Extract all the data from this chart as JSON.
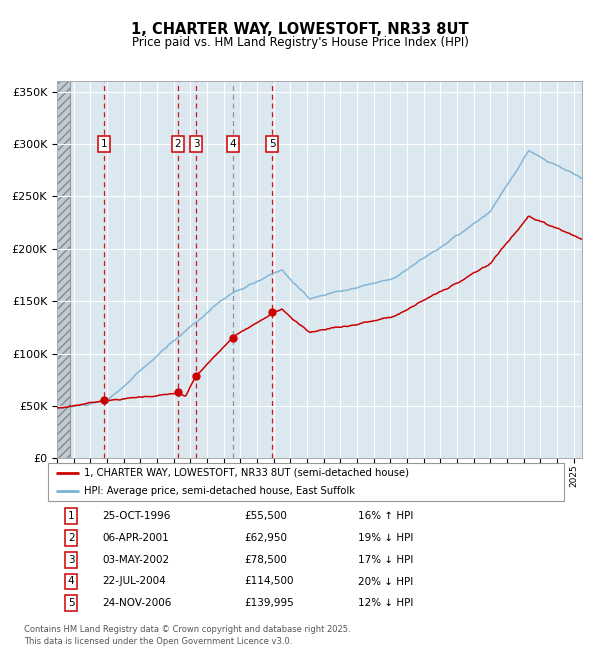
{
  "title_line1": "1, CHARTER WAY, LOWESTOFT, NR33 8UT",
  "title_line2": "Price paid vs. HM Land Registry's House Price Index (HPI)",
  "ylim": [
    0,
    360000
  ],
  "xlim_start": 1994.0,
  "xlim_end": 2025.5,
  "yticks": [
    0,
    50000,
    100000,
    150000,
    200000,
    250000,
    300000,
    350000
  ],
  "ytick_labels": [
    "£0",
    "£50K",
    "£100K",
    "£150K",
    "£200K",
    "£250K",
    "£300K",
    "£350K"
  ],
  "sale_dates_year": [
    1996.81,
    2001.26,
    2002.34,
    2004.55,
    2006.9
  ],
  "sale_prices": [
    55500,
    62950,
    78500,
    114500,
    139995
  ],
  "sale_labels": [
    "1",
    "2",
    "3",
    "4",
    "5"
  ],
  "vline_colors": [
    "#cc0000",
    "#cc0000",
    "#cc0000",
    "#888888",
    "#cc0000"
  ],
  "legend_red": "1, CHARTER WAY, LOWESTOFT, NR33 8UT (semi-detached house)",
  "legend_blue": "HPI: Average price, semi-detached house, East Suffolk",
  "table_rows": [
    [
      "1",
      "25-OCT-1996",
      "£55,500",
      "16% ↑ HPI"
    ],
    [
      "2",
      "06-APR-2001",
      "£62,950",
      "19% ↓ HPI"
    ],
    [
      "3",
      "03-MAY-2002",
      "£78,500",
      "17% ↓ HPI"
    ],
    [
      "4",
      "22-JUL-2004",
      "£114,500",
      "20% ↓ HPI"
    ],
    [
      "5",
      "24-NOV-2006",
      "£139,995",
      "12% ↓ HPI"
    ]
  ],
  "footer": "Contains HM Land Registry data © Crown copyright and database right 2025.\nThis data is licensed under the Open Government Licence v3.0.",
  "red_color": "#cc0000",
  "blue_color": "#7ab0d4",
  "plot_bg_color": "#dce8f0",
  "grid_color": "#ffffff"
}
